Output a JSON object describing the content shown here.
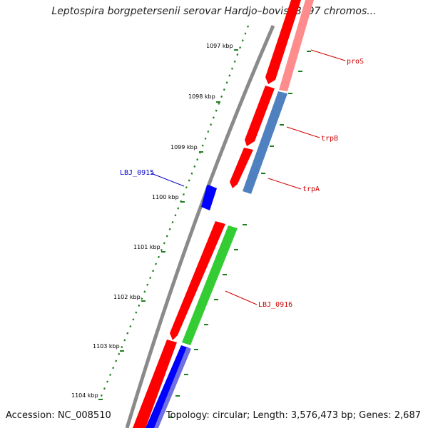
{
  "title": "Leptospira borgpetersenii serovar Hardjo–bovis JB197 chromos...",
  "accession": "Accession: NC_008510",
  "summary": "Topology: circular; Length: 3,576,473 bp; Genes: 2,687",
  "colors": {
    "backbone": "#7f7f7f",
    "ruler_ticks": "#1f7f1f",
    "forward_cds": "#ff0000",
    "reverse_cds": "#0000ff",
    "forward_orf": "#ff8080",
    "reverse_orf": "#4f7fbf",
    "rna": "#33cc33",
    "forward_label": "#cc0000",
    "reverse_label": "#0000cc"
  },
  "ruler": {
    "labels": [
      "1097 kbp",
      "1098 kbp",
      "1099 kbp",
      "1100 kbp",
      "1101 kbp",
      "1102 kbp",
      "1103 kbp",
      "1104 kbp"
    ]
  },
  "genes": [
    {
      "label": "proS",
      "strand": "forward",
      "color_key": "forward_label"
    },
    {
      "label": "trpB",
      "strand": "forward",
      "color_key": "forward_label"
    },
    {
      "label": "trpA",
      "strand": "forward",
      "color_key": "forward_label"
    },
    {
      "label": "LBJ_0915",
      "strand": "reverse",
      "color_key": "reverse_label"
    },
    {
      "label": "LBJ_0916",
      "strand": "forward",
      "color_key": "forward_label"
    }
  ]
}
